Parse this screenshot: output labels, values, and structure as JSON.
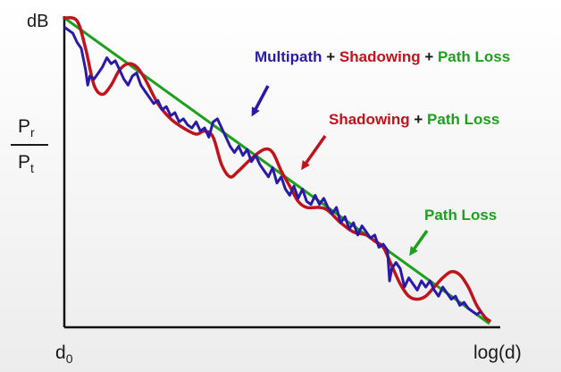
{
  "chart_data": {
    "type": "line",
    "y_unit": "dB",
    "ylabel": {
      "num": "P",
      "num_sub": "r",
      "den": "P",
      "den_sub": "t"
    },
    "xlabel": "log(d)",
    "x_start": {
      "main": "d",
      "sub": "0"
    },
    "series": [
      {
        "name": "Path Loss",
        "color": "#1ea01e",
        "points": [
          [
            0,
            100
          ],
          [
            100,
            0
          ]
        ]
      },
      {
        "name": "Shadowing",
        "color": "#c0141c",
        "points": [
          [
            0,
            100
          ],
          [
            3,
            99
          ],
          [
            5,
            90
          ],
          [
            7,
            78
          ],
          [
            9,
            75
          ],
          [
            11,
            78
          ],
          [
            13,
            83
          ],
          [
            15,
            85
          ],
          [
            17,
            84
          ],
          [
            19,
            80
          ],
          [
            22,
            72
          ],
          [
            25,
            67
          ],
          [
            28,
            64
          ],
          [
            31,
            62
          ],
          [
            33,
            63
          ],
          [
            35,
            61
          ],
          [
            37,
            52
          ],
          [
            39,
            48
          ],
          [
            41,
            50
          ],
          [
            44,
            54
          ],
          [
            47,
            57
          ],
          [
            49,
            56
          ],
          [
            51,
            50
          ],
          [
            53,
            45
          ],
          [
            55,
            40
          ],
          [
            57,
            38
          ],
          [
            60,
            38
          ],
          [
            62,
            37
          ],
          [
            65,
            33
          ],
          [
            68,
            30
          ],
          [
            71,
            29
          ],
          [
            73,
            27
          ],
          [
            75,
            25
          ],
          [
            77,
            19
          ],
          [
            79,
            13
          ],
          [
            81,
            9
          ],
          [
            83,
            8
          ],
          [
            85,
            9
          ],
          [
            87,
            12
          ],
          [
            89,
            15
          ],
          [
            91,
            17
          ],
          [
            93,
            16
          ],
          [
            95,
            12
          ],
          [
            97,
            6
          ],
          [
            99,
            2
          ],
          [
            100,
            1
          ]
        ]
      },
      {
        "name": "Multipath",
        "color": "#2a1aa8",
        "points": [
          [
            0,
            97
          ],
          [
            2,
            95
          ],
          [
            3,
            92
          ],
          [
            4,
            90
          ],
          [
            5,
            83
          ],
          [
            5.5,
            78
          ],
          [
            6,
            81
          ],
          [
            7,
            80
          ],
          [
            8,
            82
          ],
          [
            9,
            84
          ],
          [
            10,
            87
          ],
          [
            11,
            85
          ],
          [
            12,
            86
          ],
          [
            13,
            83
          ],
          [
            14,
            80
          ],
          [
            15,
            78
          ],
          [
            16,
            81
          ],
          [
            17,
            82
          ],
          [
            18,
            78
          ],
          [
            19,
            76
          ],
          [
            20,
            74
          ],
          [
            21,
            72
          ],
          [
            22,
            73
          ],
          [
            23,
            70
          ],
          [
            24,
            71
          ],
          [
            25,
            68
          ],
          [
            26,
            69
          ],
          [
            27,
            66
          ],
          [
            28,
            67
          ],
          [
            29,
            65
          ],
          [
            30,
            64
          ],
          [
            31,
            66
          ],
          [
            32,
            63
          ],
          [
            33,
            64
          ],
          [
            34,
            61
          ],
          [
            35,
            66
          ],
          [
            36,
            67
          ],
          [
            37,
            64
          ],
          [
            38,
            61
          ],
          [
            39,
            58
          ],
          [
            40,
            56
          ],
          [
            41,
            58
          ],
          [
            42,
            55
          ],
          [
            43,
            57
          ],
          [
            44,
            53
          ],
          [
            45,
            55
          ],
          [
            46,
            52
          ],
          [
            47,
            50
          ],
          [
            48,
            48
          ],
          [
            49,
            51
          ],
          [
            50,
            46
          ],
          [
            51,
            48
          ],
          [
            52,
            44
          ],
          [
            53,
            42
          ],
          [
            54,
            45
          ],
          [
            55,
            41
          ],
          [
            56,
            44
          ],
          [
            57,
            40
          ],
          [
            58,
            39
          ],
          [
            59,
            42
          ],
          [
            60,
            39
          ],
          [
            61,
            41
          ],
          [
            62,
            38
          ],
          [
            63,
            36
          ],
          [
            64,
            38
          ],
          [
            65,
            33
          ],
          [
            66,
            35
          ],
          [
            67,
            31
          ],
          [
            68,
            33
          ],
          [
            69,
            29
          ],
          [
            70,
            32
          ],
          [
            71,
            30
          ],
          [
            72,
            28
          ],
          [
            73,
            29
          ],
          [
            74,
            25
          ],
          [
            75,
            26
          ],
          [
            76,
            24
          ],
          [
            76.5,
            14
          ],
          [
            77,
            18
          ],
          [
            78,
            20
          ],
          [
            79,
            18
          ],
          [
            80,
            12
          ],
          [
            81,
            15
          ],
          [
            82,
            13
          ],
          [
            83,
            11
          ],
          [
            84,
            14
          ],
          [
            85,
            12
          ],
          [
            86,
            14
          ],
          [
            87,
            11
          ],
          [
            88,
            9
          ],
          [
            89,
            12
          ],
          [
            90,
            10
          ],
          [
            91,
            8
          ],
          [
            92,
            9
          ],
          [
            93,
            6
          ],
          [
            94,
            7
          ],
          [
            95,
            5
          ],
          [
            96,
            4
          ],
          [
            97,
            3
          ],
          [
            98,
            4
          ]
        ]
      }
    ],
    "annotations": [
      {
        "target": "multipath",
        "parts": [
          {
            "text": "Multipath",
            "color": "#2a1aa8"
          },
          {
            "text": " + ",
            "color": "#1a1a1a"
          },
          {
            "text": "Shadowing",
            "color": "#c0141c"
          },
          {
            "text": " + ",
            "color": "#1a1a1a"
          },
          {
            "text": "Path Loss",
            "color": "#1ea01e"
          }
        ],
        "arrow_color": "#2a1aa8"
      },
      {
        "target": "shadowing",
        "parts": [
          {
            "text": "Shadowing",
            "color": "#c0141c"
          },
          {
            "text": " + ",
            "color": "#1a1a1a"
          },
          {
            "text": "Path Loss",
            "color": "#1ea01e"
          }
        ],
        "arrow_color": "#c0141c"
      },
      {
        "target": "pathloss",
        "parts": [
          {
            "text": "Path Loss",
            "color": "#1ea01e"
          }
        ],
        "arrow_color": "#1ea01e"
      }
    ],
    "xlim": [
      0,
      100
    ],
    "ylim": [
      0,
      100
    ],
    "grid": false,
    "legend": "none"
  }
}
